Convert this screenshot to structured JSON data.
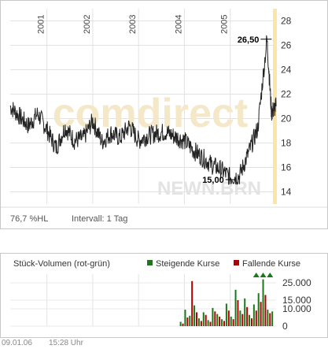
{
  "chart_data": [
    {
      "type": "line",
      "watermark": "comdirect",
      "symbol": "NEWN.BRN",
      "x_labels": [
        "2001",
        "2002",
        "2003",
        "2004",
        "2005"
      ],
      "y_ticks": [
        14,
        16,
        18,
        20,
        22,
        24,
        26,
        28
      ],
      "ylim": [
        13,
        29
      ],
      "grid": true,
      "high_label": "26,50",
      "low_label": "15,00",
      "footer_left": "76,7 %HL",
      "footer_right": "Intervall: 1 Tag",
      "series": [
        {
          "x": [
            2000.2,
            2000.4,
            2000.6,
            2000.8,
            2001.0,
            2001.2,
            2001.4,
            2001.6,
            2001.8,
            2002.0,
            2002.2,
            2002.4,
            2002.6,
            2002.8,
            2003.0,
            2003.2,
            2003.4,
            2003.6,
            2003.8,
            2004.0,
            2004.2,
            2004.4,
            2004.6,
            2004.8,
            2005.0,
            2005.2,
            2005.4,
            2005.6,
            2005.8,
            2005.9,
            2006.0
          ],
          "y": [
            21.0,
            20.2,
            19.4,
            20.4,
            19.1,
            17.6,
            19.3,
            18.2,
            18.4,
            19.8,
            18.1,
            18.8,
            18.4,
            19.4,
            18.2,
            18.6,
            18.8,
            18.9,
            18.5,
            18.2,
            17.4,
            16.8,
            16.2,
            15.8,
            15.2,
            15.3,
            17.2,
            19.2,
            26.5,
            20.5,
            21.0
          ]
        }
      ]
    },
    {
      "type": "bar",
      "title": "Stück-Volumen (rot-grün)",
      "legend": [
        "Steigende Kurse",
        "Fallende Kurse"
      ],
      "legend_colors": [
        "#1a7a1a",
        "#b00000"
      ],
      "y_ticks": [
        "25.000",
        "15.000",
        "10.000",
        "0"
      ],
      "ylim": [
        0,
        30000
      ],
      "series": [
        {
          "name": "Steigende Kurse",
          "x": [
            2003.9,
            2004.0,
            2004.1,
            2004.2,
            2004.3,
            2004.4,
            2004.5,
            2004.6,
            2004.7,
            2004.8,
            2004.9,
            2005.0,
            2005.1,
            2005.2,
            2005.3,
            2005.4,
            2005.5,
            2005.6,
            2005.7,
            2005.8,
            2005.9
          ],
          "values": [
            2500,
            9500,
            6000,
            12000,
            4500,
            8000,
            3500,
            10500,
            7000,
            4000,
            13000,
            5500,
            21000,
            9000,
            16000,
            6500,
            12500,
            19000,
            27000,
            9500,
            8500
          ]
        },
        {
          "name": "Fallende Kurse",
          "x": [
            2003.95,
            2004.05,
            2004.15,
            2004.25,
            2004.35,
            2004.45,
            2004.55,
            2004.65,
            2004.75,
            2004.85,
            2004.95,
            2005.05,
            2005.15,
            2005.25,
            2005.35,
            2005.45,
            2005.55,
            2005.65,
            2005.75,
            2005.85
          ],
          "values": [
            1500,
            5000,
            26000,
            8000,
            3000,
            6500,
            2500,
            8500,
            5500,
            3000,
            9000,
            4000,
            15000,
            7000,
            11000,
            4500,
            9000,
            14000,
            18000,
            7500
          ]
        }
      ]
    }
  ],
  "footer": {
    "date": "09.01.06",
    "time": "15:28 Uhr"
  }
}
